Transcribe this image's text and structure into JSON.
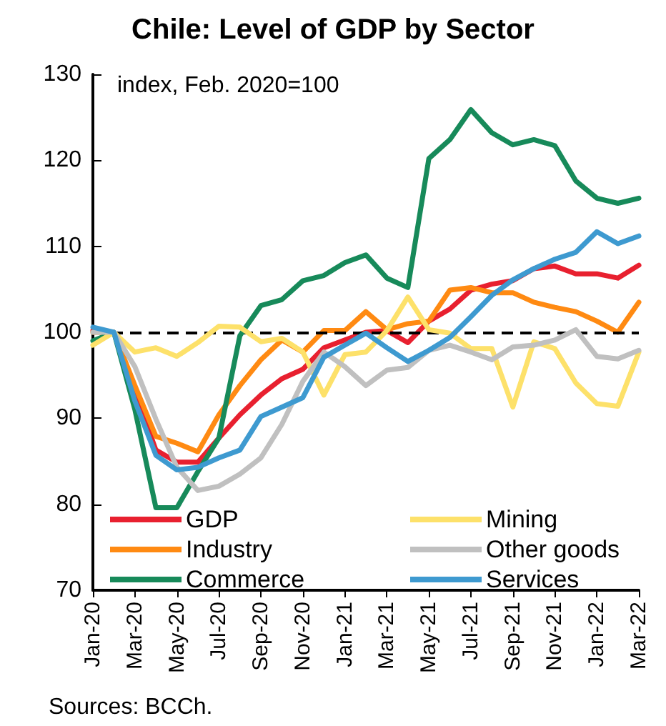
{
  "chart_data": {
    "type": "line",
    "title": "Chile: Level of GDP by Sector",
    "categories": [
      "Jan-20",
      null,
      "Mar-20",
      null,
      "May-20",
      null,
      "Jul-20",
      null,
      "Sep-20",
      null,
      "Nov-20",
      null,
      "Jan-21",
      null,
      "Mar-21",
      null,
      "May-21",
      null,
      "Jul-21",
      null,
      "Sep-21",
      null,
      "Nov-21",
      null,
      "Jan-22",
      null,
      "Mar-22"
    ],
    "series": [
      {
        "name": "GDP",
        "color": "#e8202f",
        "values": [
          100.2,
          100,
          93.2,
          86.3,
          84.9,
          84.9,
          87.7,
          90.4,
          92.7,
          94.6,
          95.7,
          98.2,
          99.1,
          100,
          100.2,
          98.8,
          101.3,
          102.7,
          104.9,
          105.6,
          106,
          107.4,
          107.7,
          106.8,
          106.8,
          106.3,
          107.8
        ]
      },
      {
        "name": "Industry",
        "color": "#ff8a12",
        "values": [
          100,
          100,
          93.8,
          87.9,
          87.1,
          86.1,
          90.4,
          93.8,
          96.8,
          99.1,
          97.7,
          100.2,
          100.2,
          102.4,
          100.3,
          101,
          101.3,
          104.9,
          105.2,
          104.6,
          104.6,
          103.5,
          102.9,
          102.4,
          101.3,
          100,
          103.5
        ]
      },
      {
        "name": "Commerce",
        "color": "#178a5a",
        "values": [
          99,
          100,
          91,
          79.6,
          79.6,
          83.8,
          87.7,
          99.6,
          103.1,
          103.8,
          106,
          106.6,
          108.1,
          109,
          106.3,
          105.2,
          120.2,
          122.4,
          125.9,
          123.2,
          121.8,
          122.4,
          121.7,
          117.6,
          115.6,
          115,
          115.6
        ]
      },
      {
        "name": "Mining",
        "color": "#fde16a",
        "values": [
          98.5,
          100,
          97.7,
          98.2,
          97.2,
          98.8,
          100.7,
          100.6,
          98.9,
          99.3,
          97.7,
          92.7,
          97.4,
          97.7,
          100.2,
          104.1,
          100.3,
          99.9,
          98.1,
          98.1,
          91.3,
          98.9,
          98.1,
          94.1,
          91.7,
          91.4,
          97.7
        ]
      },
      {
        "name": "Other goods",
        "color": "#c0c0c0",
        "values": [
          100,
          100,
          96,
          89.9,
          84.3,
          81.6,
          82.1,
          83.5,
          85.4,
          89.3,
          94.3,
          97.7,
          96,
          93.8,
          95.6,
          95.9,
          97.9,
          98.5,
          97.7,
          96.8,
          98.3,
          98.5,
          99.1,
          100.3,
          97.2,
          96.9,
          97.9
        ]
      },
      {
        "name": "Services",
        "color": "#3e9ad0",
        "values": [
          100.6,
          100,
          92,
          85.7,
          84,
          84.3,
          85.4,
          86.3,
          90.2,
          91.3,
          92.4,
          97.1,
          98.5,
          99.9,
          98.2,
          96.6,
          97.9,
          99.4,
          101.8,
          104.3,
          106.1,
          107.4,
          108.5,
          109.3,
          111.7,
          110.3,
          111.2
        ]
      }
    ],
    "ylim": [
      70,
      130
    ],
    "yticks": [
      70,
      80,
      90,
      100,
      110,
      120,
      130
    ],
    "ref_lines": [
      {
        "axis": "y",
        "value": 100,
        "label": null,
        "color": "#000000",
        "line_style": "dashed"
      }
    ],
    "annotations": [
      "index, Feb. 2020=100",
      "Sources: BCCh."
    ],
    "legend": "bottom",
    "grid": false,
    "marker": "none",
    "line_style": "solid"
  }
}
